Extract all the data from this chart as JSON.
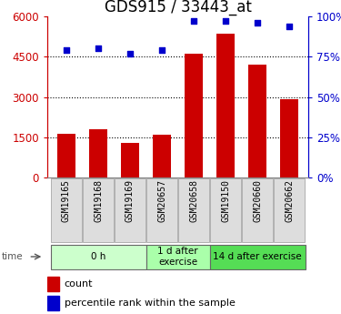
{
  "title": "GDS915 / 33443_at",
  "categories": [
    "GSM19165",
    "GSM19168",
    "GSM19169",
    "GSM20657",
    "GSM20658",
    "GSM19150",
    "GSM20660",
    "GSM20662"
  ],
  "counts": [
    1620,
    1780,
    1300,
    1580,
    4620,
    5350,
    4200,
    2920
  ],
  "percentiles": [
    79,
    80.5,
    77,
    79,
    97,
    97,
    96,
    94
  ],
  "groups": [
    {
      "label": "0 h",
      "start": 0,
      "end": 3,
      "color": "#ccffcc"
    },
    {
      "label": "1 d after\nexercise",
      "start": 3,
      "end": 5,
      "color": "#aaffaa"
    },
    {
      "label": "14 d after exercise",
      "start": 5,
      "end": 8,
      "color": "#55dd55"
    }
  ],
  "ylim_left": [
    0,
    6000
  ],
  "ylim_right": [
    0,
    100
  ],
  "yticks_left": [
    0,
    1500,
    3000,
    4500,
    6000
  ],
  "yticks_right": [
    0,
    25,
    50,
    75,
    100
  ],
  "bar_color": "#cc0000",
  "dot_color": "#0000cc",
  "left_tick_color": "#cc0000",
  "right_tick_color": "#0000cc",
  "title_fontsize": 12,
  "tick_fontsize": 8.5,
  "bar_width": 0.55,
  "plot_bg_color": "#ffffff"
}
